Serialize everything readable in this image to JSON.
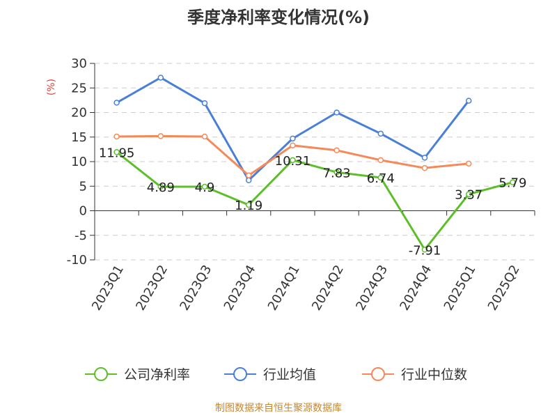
{
  "title": "季度净利率变化情况(%)",
  "source": "制图数据来自恒生聚源数据库",
  "colors": {
    "grid": "#cccccc",
    "axis": "#333333",
    "ylabel": "#e8413c",
    "source": "#c8872a"
  },
  "chart_data": {
    "type": "line",
    "ylabel": "(%)",
    "ylim": [
      -10,
      30
    ],
    "yticks": [
      30,
      25,
      20,
      15,
      10,
      5,
      0,
      -5,
      -10
    ],
    "grid": true,
    "legend_position": "bottom",
    "categories": [
      "2023Q1",
      "2023Q2",
      "2023Q3",
      "2023Q4",
      "2024Q1",
      "2024Q2",
      "2024Q3",
      "2024Q4",
      "2025Q1",
      "2025Q2"
    ],
    "series": [
      {
        "name": "公司净利率",
        "color": "#5cbf2a",
        "values": [
          11.95,
          4.89,
          4.9,
          1.19,
          10.31,
          7.83,
          6.74,
          -7.91,
          3.37,
          5.79
        ],
        "labels": [
          "11.95",
          "4.89",
          "4.9",
          "1.19",
          "10.31",
          "7.83",
          "6.74",
          "-7.91",
          "3.37",
          "5.79"
        ]
      },
      {
        "name": "行业均值",
        "color": "#4a7fd8",
        "values": [
          22.0,
          27.1,
          21.9,
          6.2,
          14.7,
          20.0,
          15.7,
          10.8,
          22.4,
          null
        ]
      },
      {
        "name": "行业中位数",
        "color": "#f5895a",
        "values": [
          15.1,
          15.2,
          15.1,
          7.2,
          13.3,
          12.3,
          10.3,
          8.7,
          9.6,
          null
        ]
      }
    ]
  }
}
